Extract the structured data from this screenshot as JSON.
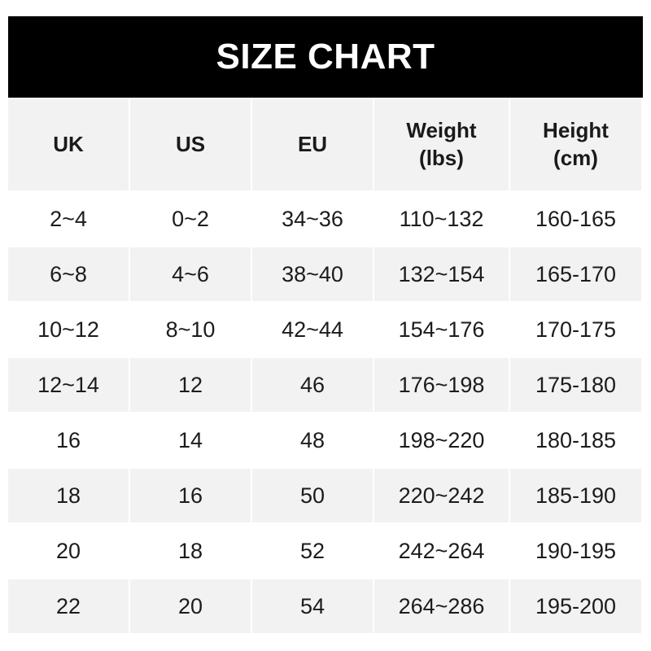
{
  "title": "SIZE CHART",
  "headers": [
    "UK",
    "US",
    "EU",
    "Weight\n(lbs)",
    "Height\n(cm)"
  ],
  "rows": [
    [
      "2~4",
      "0~2",
      "34~36",
      "110~132",
      "160-165"
    ],
    [
      "6~8",
      "4~6",
      "38~40",
      "132~154",
      "165-170"
    ],
    [
      "10~12",
      "8~10",
      "42~44",
      "154~176",
      "170-175"
    ],
    [
      "12~14",
      "12",
      "46",
      "176~198",
      "175-180"
    ],
    [
      "16",
      "14",
      "48",
      "198~220",
      "180-185"
    ],
    [
      "18",
      "16",
      "50",
      "220~242",
      "185-190"
    ],
    [
      "20",
      "18",
      "52",
      "242~264",
      "190-195"
    ],
    [
      "22",
      "20",
      "54",
      "264~286",
      "195-200"
    ]
  ],
  "colors": {
    "header_bg": "#000000",
    "header_row_bg": "#f2f2f2",
    "stripe_bg": "#f2f2f2"
  }
}
